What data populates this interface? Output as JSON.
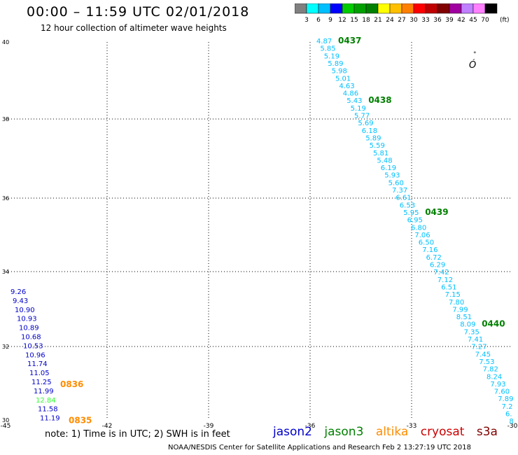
{
  "header": {
    "title": "00:00 – 11:59 UTC 02/01/2018",
    "subtitle": "12 hour collection of altimeter wave heights"
  },
  "colorbar": {
    "colors": [
      "#808080",
      "#00ffff",
      "#00bfff",
      "#0000ff",
      "#00cc00",
      "#00a000",
      "#008000",
      "#ffff00",
      "#ffc000",
      "#ff8000",
      "#ff0000",
      "#c00000",
      "#800000",
      "#a000a0",
      "#c080ff",
      "#ff80ff",
      "#000000"
    ],
    "labels": [
      "3",
      "6",
      "9",
      "12",
      "15",
      "18",
      "21",
      "24",
      "27",
      "30",
      "33",
      "36",
      "39",
      "42",
      "45",
      "70"
    ],
    "unit": "(ft)"
  },
  "axes": {
    "lon_ticks": [
      "-45",
      "-42",
      "-39",
      "-36",
      "-33",
      "-30"
    ],
    "lat_ticks": [
      "40",
      "38",
      "36",
      "34",
      "32",
      "30"
    ]
  },
  "colors": {
    "jason2": "#0000cc",
    "jason3": "#008000",
    "altika": "#ff8c00",
    "cryosat": "#cc0000",
    "s3a": "#800000",
    "track_cyan": "#00c0ff",
    "green_light": "#33ff33"
  },
  "map_symbol": "°\nÓ",
  "tracks": [
    {
      "satellite": "jason3",
      "color": "#00c0ff",
      "values": [
        "4.87",
        "5.85",
        "5.19",
        "5.89",
        "5.98",
        "5.01",
        "4.63",
        "4.86",
        "5.43",
        "5.19",
        "5.77",
        "5.69",
        "6.18",
        "5.89",
        "5.59",
        "5.81",
        "5.48",
        "6.19",
        "5.93",
        "5.60",
        "7.37",
        "6.61",
        "6.53",
        "5.95",
        "6.95",
        "6.80",
        "7.06",
        "6.50",
        "7.16",
        "6.72",
        "6.29",
        "7.42",
        "7.12",
        "6.51",
        "7.15",
        "7.80",
        "7.99",
        "8.51",
        "8.09",
        "7.35",
        "7.41",
        "7.27",
        "7.45",
        "7.53",
        "7.82",
        "8.24",
        "7.93",
        "7.60",
        "7.89",
        "7.2",
        "6.",
        "8"
      ],
      "times": [
        {
          "label": "0437",
          "after": 0
        },
        {
          "label": "0438",
          "after": 8
        },
        {
          "label": "0439",
          "after": 23
        },
        {
          "label": "0440",
          "after": 38
        }
      ]
    },
    {
      "satellite": "jason2",
      "color": "#0000cc",
      "values": [
        "9.26",
        "9.43",
        "10.90",
        "10.93",
        "10.89",
        "10.68",
        "10.53",
        "10.96",
        "11.74",
        "11.05",
        "11.25",
        "11.99",
        "12.84",
        "11.58",
        "11.19"
      ],
      "highlight_index": 12,
      "times": [
        {
          "label": "0836",
          "after": 10
        },
        {
          "label": "0835",
          "after": 14
        }
      ]
    }
  ],
  "footer": {
    "note": "note: 1) Time is in UTC; 2) SWH is in feet",
    "satellites": [
      {
        "name": "jason2",
        "color": "#0000cc"
      },
      {
        "name": "jason3",
        "color": "#008000"
      },
      {
        "name": "altika",
        "color": "#ff8c00"
      },
      {
        "name": "cryosat",
        "color": "#cc0000"
      },
      {
        "name": "s3a",
        "color": "#800000"
      }
    ],
    "credit": "NOAA/NESDIS Center for Satellite Applications and Research    Feb  2 13:27:19 UTC 2018"
  }
}
